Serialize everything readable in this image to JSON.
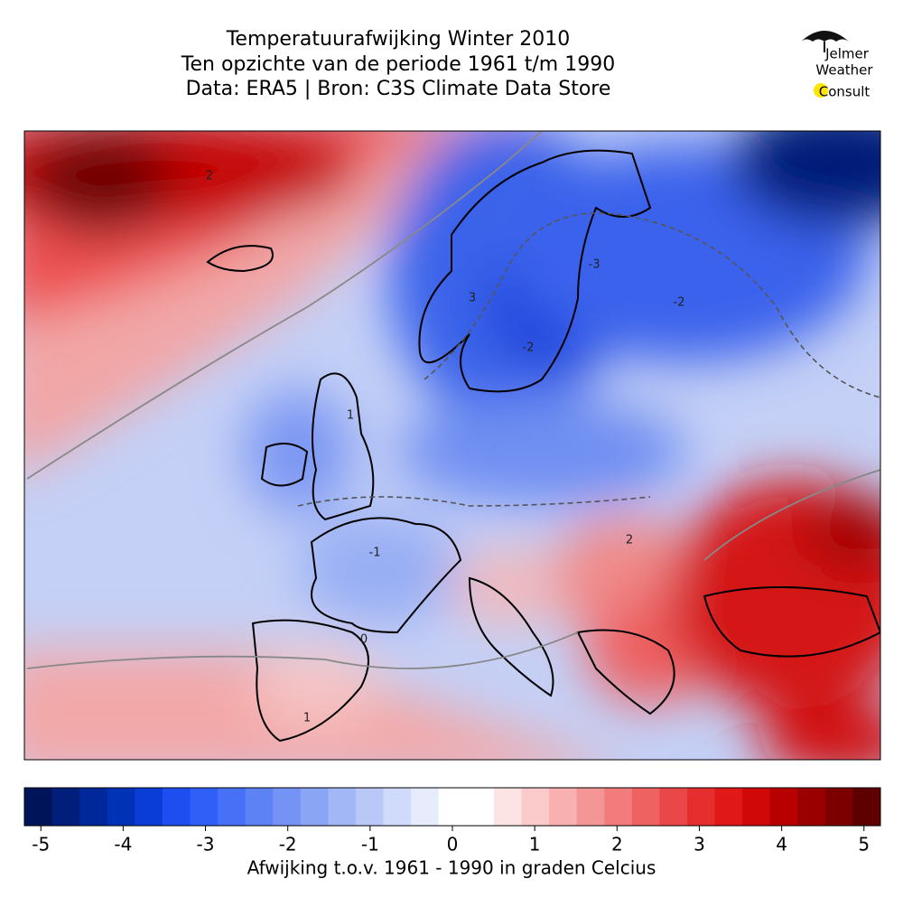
{
  "header": {
    "title_lines": [
      "Temperatuurafwijking Winter 2010",
      "Ten opzichte van de periode 1961 t/m 1990",
      "Data: ERA5 | Bron: C3S Climate Data Store"
    ]
  },
  "logo": {
    "lines": [
      "Jelmer",
      "Weather",
      "Consult"
    ]
  },
  "map": {
    "contour_labels": [
      -3,
      -2,
      2,
      -1,
      0,
      1,
      -2,
      1,
      2,
      3
    ]
  },
  "colorbar": {
    "lim": [
      -5.2,
      5.2
    ],
    "ticks": [
      -5,
      -4,
      -3,
      -2,
      -1,
      0,
      1,
      2,
      3,
      4,
      5
    ],
    "label": "Afwijking t.o.v. 1961 - 1990 in graden Celcius",
    "colors": [
      "#00145a",
      "#001e7a",
      "#00289a",
      "#0032b8",
      "#0a3cd6",
      "#1e4ef0",
      "#2f5ff7",
      "#4670f5",
      "#5d82f5",
      "#7493f4",
      "#8ba5f5",
      "#a2b7f6",
      "#b9c8f7",
      "#d0dafa",
      "#e6ecfc",
      "#ffffff",
      "#ffffff",
      "#fde4e4",
      "#fbcaca",
      "#f8b0b0",
      "#f59696",
      "#f27c7c",
      "#ee6262",
      "#ea4848",
      "#e62e2e",
      "#e01818",
      "#d00808",
      "#b80000",
      "#9a0000",
      "#7c0000",
      "#5e0000"
    ]
  }
}
